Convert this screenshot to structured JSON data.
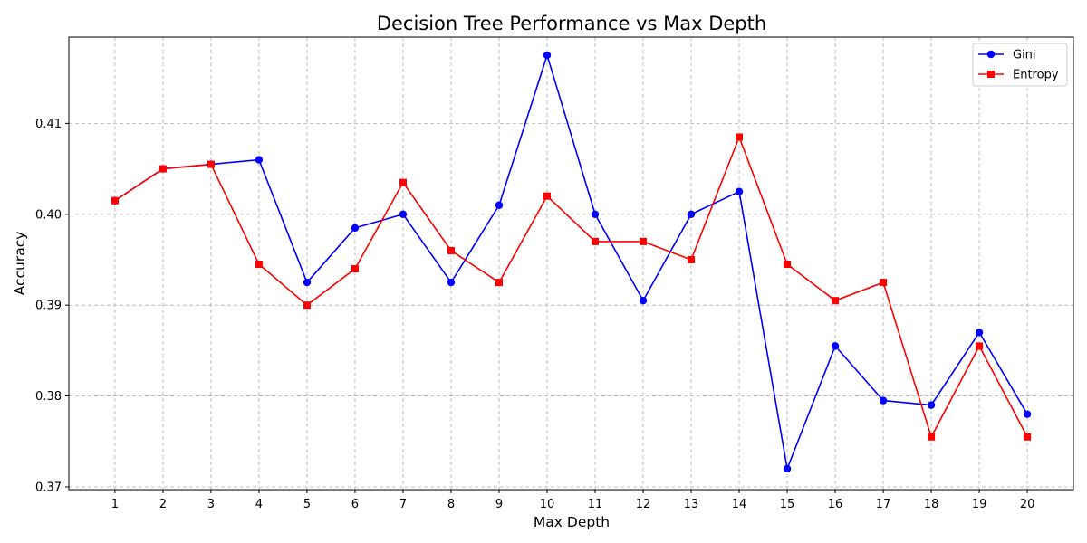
{
  "chart_data": {
    "type": "line",
    "title": "Decision Tree Performance vs Max Depth",
    "xlabel": "Max Depth",
    "ylabel": "Accuracy",
    "x": [
      1,
      2,
      3,
      4,
      5,
      6,
      7,
      8,
      9,
      10,
      11,
      12,
      13,
      14,
      15,
      16,
      17,
      18,
      19,
      20
    ],
    "yticks": [
      0.37,
      0.38,
      0.39,
      0.4,
      0.41
    ],
    "ytick_labels": [
      "0.37",
      "0.38",
      "0.39",
      "0.40",
      "0.41"
    ],
    "grid": true,
    "legend_position": "top-right",
    "series": [
      {
        "name": "Gini",
        "color": "#0000ff",
        "marker": "circle",
        "values": [
          0.4015,
          0.405,
          0.4055,
          0.406,
          0.3925,
          0.3985,
          0.4,
          0.3925,
          0.401,
          0.4175,
          0.4,
          0.3905,
          0.4,
          0.4025,
          0.372,
          0.3855,
          0.3795,
          0.379,
          0.387,
          0.378
        ]
      },
      {
        "name": "Entropy",
        "color": "#ff0000",
        "marker": "square",
        "values": [
          0.4015,
          0.405,
          0.4055,
          0.3945,
          0.39,
          0.394,
          0.4035,
          0.396,
          0.3925,
          0.402,
          0.397,
          0.397,
          0.395,
          0.4085,
          0.3945,
          0.3905,
          0.3925,
          0.3755,
          0.3855,
          0.3755
        ]
      }
    ]
  }
}
